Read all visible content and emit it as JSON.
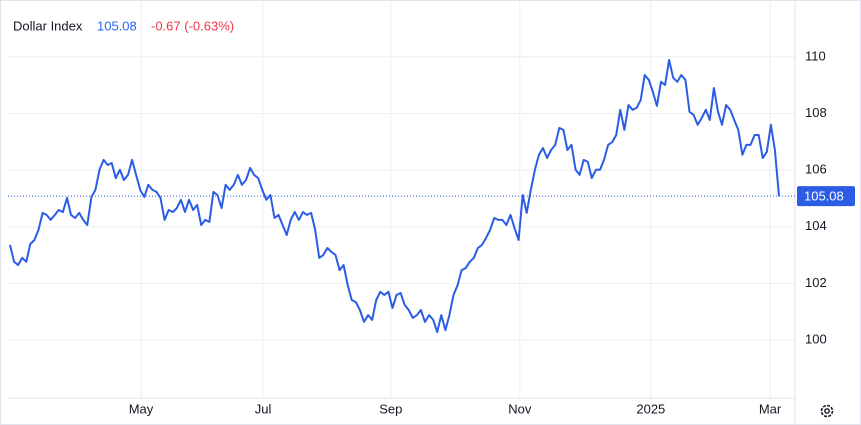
{
  "header": {
    "name": "Dollar Index",
    "last": 105.08,
    "change": "-0.67 (-0.63%)"
  },
  "chart_data": {
    "type": "line",
    "series": [
      {
        "name": "Dollar Index",
        "color": "#2b5ce6",
        "values": [
          103.36,
          102.76,
          102.65,
          102.9,
          102.76,
          103.39,
          103.53,
          103.89,
          104.49,
          104.42,
          104.24,
          104.42,
          104.59,
          104.52,
          105.02,
          104.42,
          104.31,
          104.49,
          104.24,
          104.06,
          105.05,
          105.3,
          106.01,
          106.36,
          106.18,
          106.25,
          105.72,
          106.01,
          105.65,
          105.83,
          106.36,
          105.83,
          105.3,
          105.05,
          105.48,
          105.3,
          105.23,
          105.02,
          104.24,
          104.59,
          104.52,
          104.66,
          104.95,
          104.52,
          104.95,
          104.59,
          104.77,
          104.06,
          104.24,
          104.17,
          105.23,
          105.12,
          104.66,
          105.48,
          105.3,
          105.48,
          105.83,
          105.48,
          105.65,
          106.08,
          105.83,
          105.72,
          105.3,
          104.95,
          105.12,
          104.31,
          104.42,
          104.06,
          103.71,
          104.24,
          104.52,
          104.24,
          104.52,
          104.42,
          104.49,
          103.89,
          102.9,
          103.0,
          103.25,
          103.11,
          103.0,
          102.47,
          102.65,
          101.94,
          101.41,
          101.34,
          101.06,
          100.64,
          100.88,
          100.71,
          101.41,
          101.7,
          101.59,
          101.7,
          101.13,
          101.59,
          101.66,
          101.24,
          101.06,
          100.78,
          100.88,
          101.06,
          100.64,
          100.88,
          100.71,
          100.28,
          100.88,
          100.35,
          100.88,
          101.59,
          101.94,
          102.47,
          102.54,
          102.76,
          102.9,
          103.25,
          103.36,
          103.6,
          103.89,
          104.31,
          104.24,
          104.24,
          104.06,
          104.42,
          103.96,
          103.53,
          105.12,
          104.49,
          105.3,
          106.01,
          106.54,
          106.78,
          106.43,
          106.71,
          106.89,
          107.49,
          107.42,
          106.71,
          106.89,
          106.01,
          105.83,
          106.36,
          106.29,
          105.72,
          106.01,
          106.01,
          106.36,
          106.89,
          106.99,
          107.24,
          108.13,
          107.42,
          108.3,
          108.13,
          108.2,
          108.48,
          109.36,
          109.19,
          108.76,
          108.27,
          109.12,
          109.01,
          109.89,
          109.26,
          109.12,
          109.36,
          109.19,
          108.06,
          107.95,
          107.6,
          107.84,
          108.13,
          107.77,
          108.9,
          108.06,
          107.6,
          108.3,
          108.13,
          107.77,
          107.42,
          106.54,
          106.89,
          106.89,
          107.24,
          107.24,
          106.43,
          106.64,
          107.6,
          106.71,
          105.08
        ]
      }
    ],
    "ylim": [
      97.95,
      112.01
    ],
    "yticks": [
      100,
      102,
      104,
      106,
      108,
      110
    ],
    "xlim": [
      0,
      189
    ],
    "xticks": [
      {
        "value": 32.2,
        "label": "May"
      },
      {
        "value": 62.2,
        "label": "Jul"
      },
      {
        "value": 93.6,
        "label": "Sep"
      },
      {
        "value": 125.3,
        "label": "Nov"
      },
      {
        "value": 157.5,
        "label": "2025"
      },
      {
        "value": 186.8,
        "label": "Mar"
      }
    ],
    "grid": true
  }
}
